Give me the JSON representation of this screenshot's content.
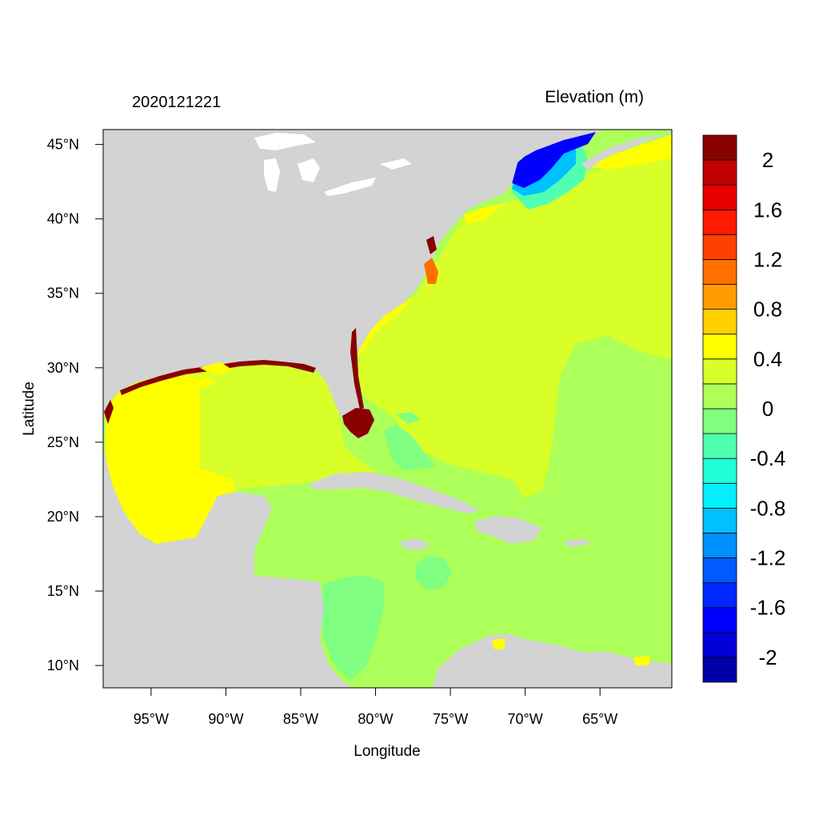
{
  "header": {
    "date_label": "2020121221",
    "variable_label": "Elevation (m)"
  },
  "map": {
    "lon_range": [
      -98.2,
      -60.2
    ],
    "lat_range": [
      8.5,
      46.0
    ],
    "land_color": "#d3d3d3",
    "lake_color": "#ffffff",
    "background_color": "#adff5a"
  },
  "axes": {
    "xlabel": "Longitude",
    "ylabel": "Latitude",
    "x_ticks": [
      {
        "value": -95,
        "label": "95°W"
      },
      {
        "value": -90,
        "label": "90°W"
      },
      {
        "value": -85,
        "label": "85°W"
      },
      {
        "value": -80,
        "label": "80°W"
      },
      {
        "value": -75,
        "label": "75°W"
      },
      {
        "value": -70,
        "label": "70°W"
      },
      {
        "value": -65,
        "label": "65°W"
      }
    ],
    "y_ticks": [
      {
        "value": 45,
        "label": "45°N"
      },
      {
        "value": 40,
        "label": "40°N"
      },
      {
        "value": 35,
        "label": "35°N"
      },
      {
        "value": 30,
        "label": "30°N"
      },
      {
        "value": 25,
        "label": "25°N"
      },
      {
        "value": 20,
        "label": "20°N"
      },
      {
        "value": 15,
        "label": "15°N"
      },
      {
        "value": 10,
        "label": "10°N"
      }
    ]
  },
  "colorbar": {
    "min": -2.2,
    "max": 2.2,
    "step": 0.2,
    "colors": [
      "#0000a8",
      "#0000d6",
      "#0000ff",
      "#0028ff",
      "#005aff",
      "#0090ff",
      "#00c0ff",
      "#00f0ff",
      "#20ffd8",
      "#50ffb0",
      "#80ff80",
      "#adff5a",
      "#d8ff28",
      "#ffff00",
      "#ffd000",
      "#ff9c00",
      "#ff7000",
      "#ff4000",
      "#ff1a00",
      "#e80000",
      "#c00000",
      "#880000"
    ],
    "labels": [
      {
        "value": 2,
        "label": "2"
      },
      {
        "value": 1.6,
        "label": "1.6"
      },
      {
        "value": 1.2,
        "label": "1.2"
      },
      {
        "value": 0.8,
        "label": "0.8"
      },
      {
        "value": 0.4,
        "label": "0.4"
      },
      {
        "value": 0,
        "label": "0"
      },
      {
        "value": -0.4,
        "label": "-0.4"
      },
      {
        "value": -0.8,
        "label": "-0.8"
      },
      {
        "value": -1.2,
        "label": "-1.2"
      },
      {
        "value": -1.6,
        "label": "-1.6"
      },
      {
        "value": -2,
        "label": "-2"
      }
    ]
  },
  "field_regions": [
    {
      "name": "western-gulf-high",
      "value": 0.5
    },
    {
      "name": "central-gulf",
      "value": 0.3
    },
    {
      "name": "western-atlantic",
      "value": 0.3
    },
    {
      "name": "caribbean",
      "value": 0.1
    },
    {
      "name": "sargasso-region",
      "value": 0.1
    },
    {
      "name": "gulf-of-maine-low",
      "value": -1.8
    },
    {
      "name": "gulf-of-maine-gradient",
      "value": -1.0
    },
    {
      "name": "gulf-of-maine-edge",
      "value": -0.4
    },
    {
      "name": "south-florida-surge",
      "value": 2.2
    },
    {
      "name": "nova-scotia-shelf",
      "value": 0.5
    },
    {
      "name": "bahamas-banks",
      "value": -0.2
    },
    {
      "name": "nicaragua-shelf",
      "value": -0.1
    },
    {
      "name": "jamaica-ridge",
      "value": -0.1
    },
    {
      "name": "carolina-sounds",
      "value": 1.0
    }
  ]
}
